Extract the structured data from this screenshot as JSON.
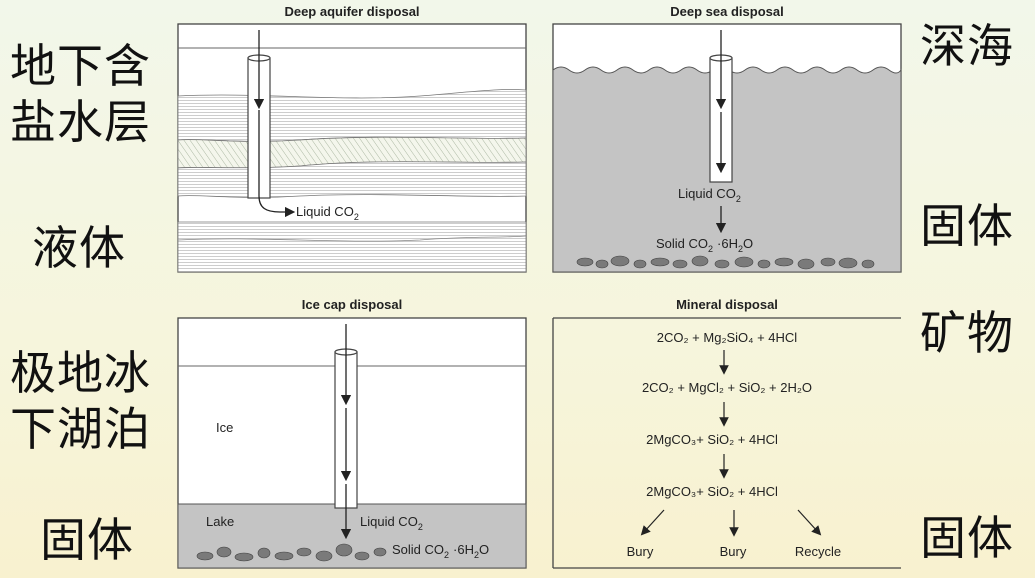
{
  "side_labels": {
    "top_left": "地下含\n盐水层",
    "mid_left": "液体",
    "bottom_left_top": "极地冰\n下湖泊",
    "bottom_left": "固体",
    "top_right": "深海",
    "mid_right": "固体",
    "mid_right2": "矿物",
    "bottom_right": "固体"
  },
  "panels": {
    "deep_aquifer": {
      "title": "Deep aquifer disposal",
      "label": "Liquid CO",
      "sub": "2"
    },
    "deep_sea": {
      "title": "Deep sea disposal",
      "liquid": "Liquid CO",
      "liquid_sub": "2",
      "solid": "Solid CO",
      "solid_sub": "2",
      "solid_suffix": "·6H",
      "solid_sub2": "2",
      "solid_end": "O"
    },
    "ice_cap": {
      "title": "Ice cap disposal",
      "ice": "Ice",
      "lake": "Lake",
      "liquid": "Liquid CO",
      "liquid_sub": "2",
      "solid": "Solid CO",
      "solid_sub": "2",
      "solid_suffix": "·6H",
      "solid_sub2": "2",
      "solid_end": "O"
    },
    "mineral": {
      "title": "Mineral disposal",
      "eq1": "2CO₂ + Mg₂SiO₄ + 4HCl",
      "eq2": "2CO₂ + MgCl₂ + SiO₂ + 2H₂O",
      "eq3": "2MgCO₃+ SiO₂ + 4HCl",
      "eq4": "2MgCO₃+ SiO₂ + 4HCl",
      "out1": "Bury",
      "out2": "Bury",
      "out3": "Recycle"
    }
  }
}
